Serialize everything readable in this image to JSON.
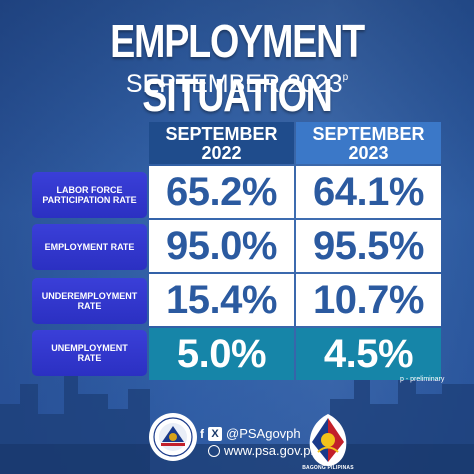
{
  "header": {
    "title": "EMPLOYMENT SITUATION",
    "subtitle": "SEPTEMBER 2023",
    "subtitle_marker": "p"
  },
  "table": {
    "columns": [
      {
        "line1": "SEPTEMBER",
        "line2": "2022"
      },
      {
        "line1": "SEPTEMBER",
        "line2": "2023"
      }
    ],
    "rows": [
      {
        "label_line1": "LABOR FORCE",
        "label_line2": "PARTICIPATION RATE",
        "v2022": "65.2%",
        "v2023": "64.1%"
      },
      {
        "label_line1": "EMPLOYMENT RATE",
        "label_line2": "",
        "v2022": "95.0%",
        "v2023": "95.5%"
      },
      {
        "label_line1": "UNDEREMPLOYMENT",
        "label_line2": "RATE",
        "v2022": "15.4%",
        "v2023": "10.7%"
      },
      {
        "label_line1": "UNEMPLOYMENT",
        "label_line2": "RATE",
        "v2022": "5.0%",
        "v2023": "4.5%"
      }
    ],
    "highlight_color": "#1685a8",
    "label_color": "#3a3fd8",
    "value_color": "#2b5aa0"
  },
  "note": "p - preliminary",
  "footer": {
    "social_handle": "@PSAgovph",
    "website": "www.psa.gov.ph",
    "social_icons": [
      "facebook-icon",
      "x-icon"
    ],
    "web_icon": "globe-icon",
    "logo_text": "BAGONG PILIPINAS"
  }
}
